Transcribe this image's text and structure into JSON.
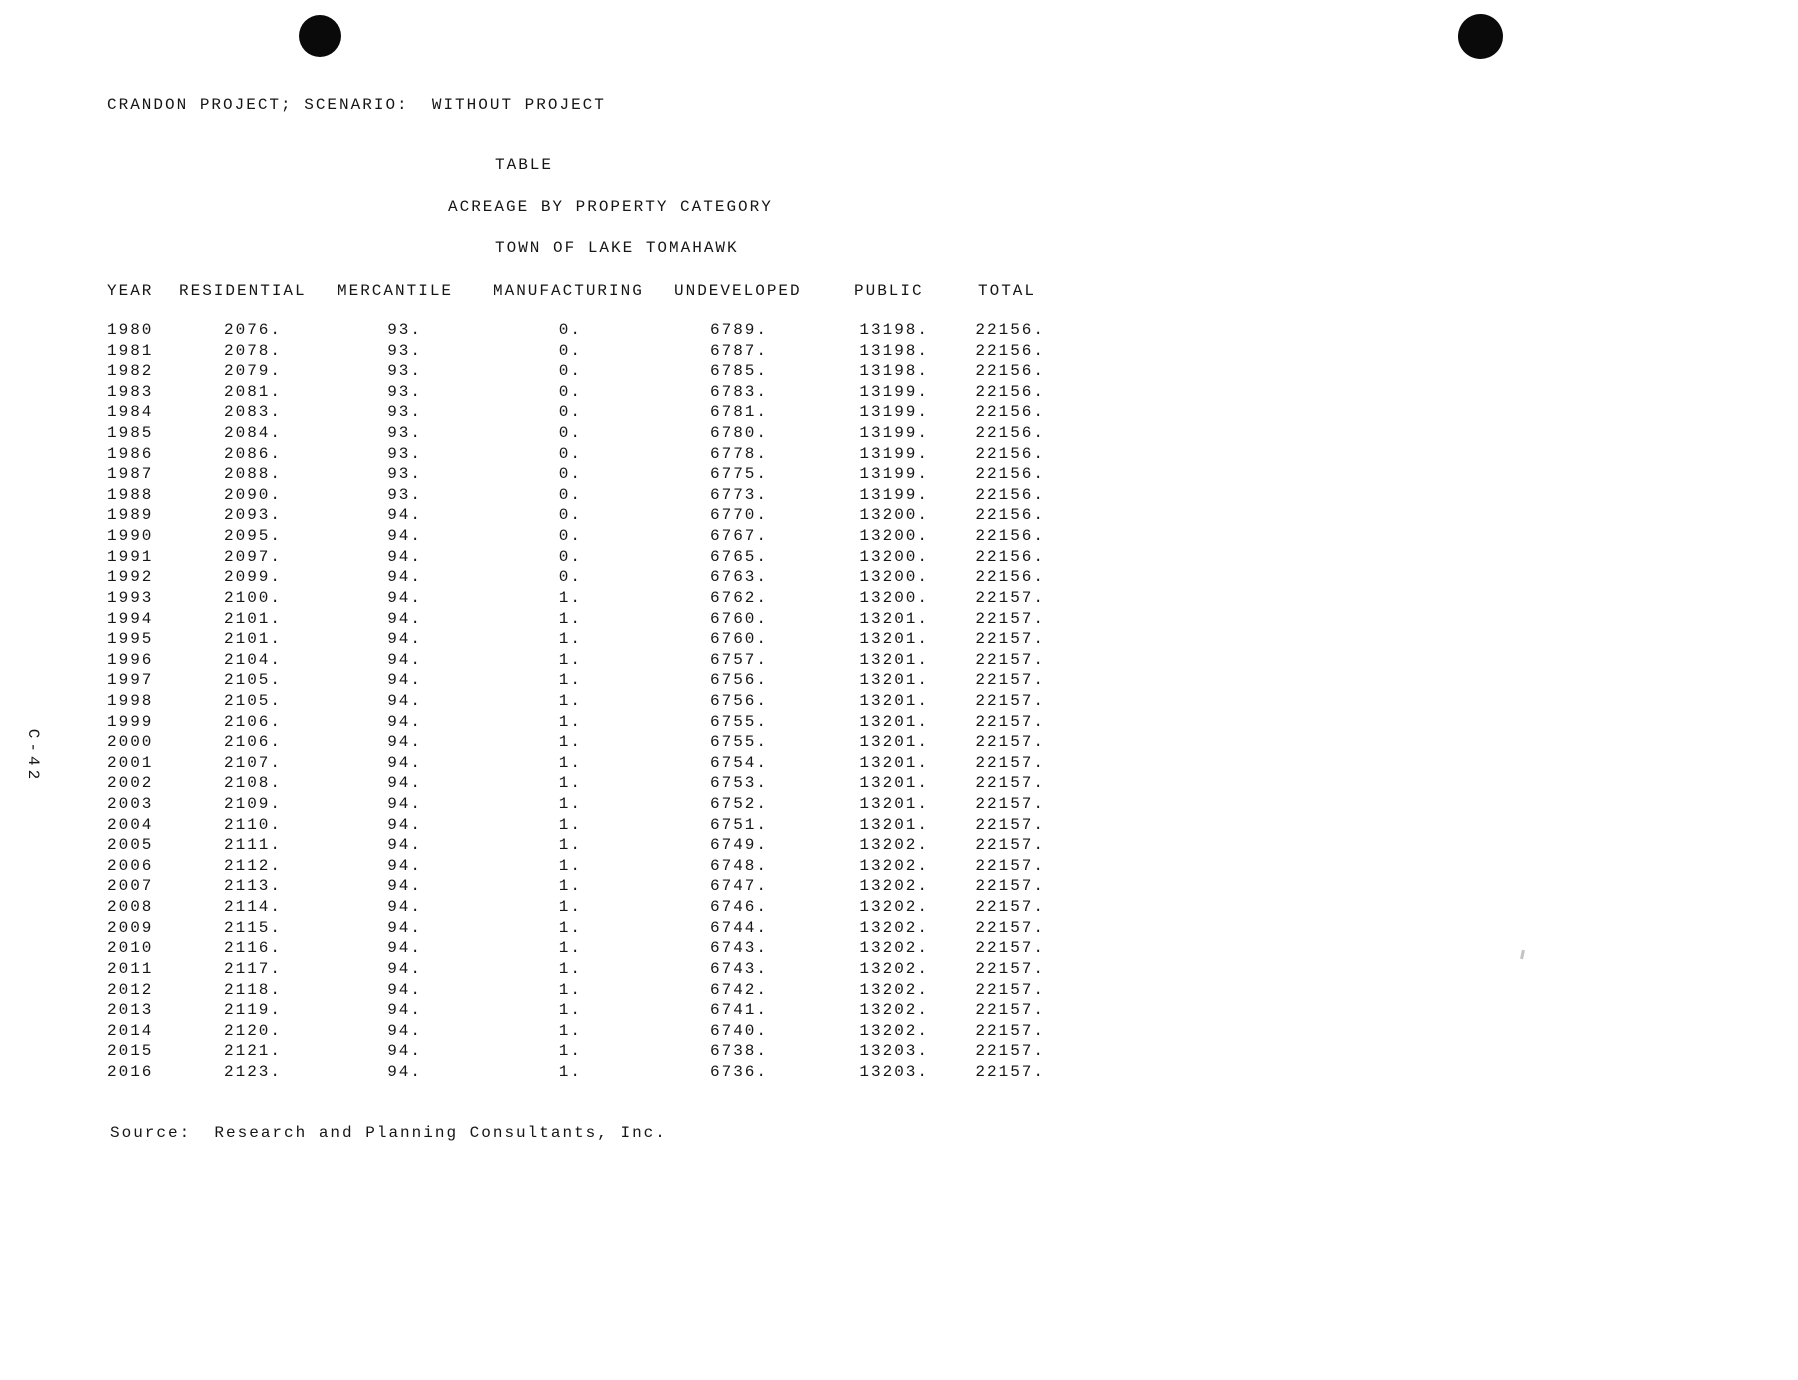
{
  "page": {
    "scenario_line": "CRANDON PROJECT; SCENARIO:  WITHOUT PROJECT",
    "table_label": "TABLE",
    "title": "ACREAGE BY PROPERTY CATEGORY",
    "town": "TOWN OF LAKE TOMAHAWK",
    "side_label": "C-42",
    "source": "Source:  Research and Planning Consultants, Inc.",
    "text_color": "#161616",
    "background": "#ffffff"
  },
  "table": {
    "columns": [
      "YEAR",
      "RESIDENTIAL",
      "MERCANTILE",
      "MANUFACTURING",
      "UNDEVELOPED",
      "PUBLIC",
      "TOTAL"
    ],
    "rows": [
      [
        "1980",
        "2076.",
        "93.",
        "0.",
        "6789.",
        "13198.",
        "22156."
      ],
      [
        "1981",
        "2078.",
        "93.",
        "0.",
        "6787.",
        "13198.",
        "22156."
      ],
      [
        "1982",
        "2079.",
        "93.",
        "0.",
        "6785.",
        "13198.",
        "22156."
      ],
      [
        "1983",
        "2081.",
        "93.",
        "0.",
        "6783.",
        "13199.",
        "22156."
      ],
      [
        "1984",
        "2083.",
        "93.",
        "0.",
        "6781.",
        "13199.",
        "22156."
      ],
      [
        "1985",
        "2084.",
        "93.",
        "0.",
        "6780.",
        "13199.",
        "22156."
      ],
      [
        "1986",
        "2086.",
        "93.",
        "0.",
        "6778.",
        "13199.",
        "22156."
      ],
      [
        "1987",
        "2088.",
        "93.",
        "0.",
        "6775.",
        "13199.",
        "22156."
      ],
      [
        "1988",
        "2090.",
        "93.",
        "0.",
        "6773.",
        "13199.",
        "22156."
      ],
      [
        "1989",
        "2093.",
        "94.",
        "0.",
        "6770.",
        "13200.",
        "22156."
      ],
      [
        "1990",
        "2095.",
        "94.",
        "0.",
        "6767.",
        "13200.",
        "22156."
      ],
      [
        "1991",
        "2097.",
        "94.",
        "0.",
        "6765.",
        "13200.",
        "22156."
      ],
      [
        "1992",
        "2099.",
        "94.",
        "0.",
        "6763.",
        "13200.",
        "22156."
      ],
      [
        "1993",
        "2100.",
        "94.",
        "1.",
        "6762.",
        "13200.",
        "22157."
      ],
      [
        "1994",
        "2101.",
        "94.",
        "1.",
        "6760.",
        "13201.",
        "22157."
      ],
      [
        "1995",
        "2101.",
        "94.",
        "1.",
        "6760.",
        "13201.",
        "22157."
      ],
      [
        "1996",
        "2104.",
        "94.",
        "1.",
        "6757.",
        "13201.",
        "22157."
      ],
      [
        "1997",
        "2105.",
        "94.",
        "1.",
        "6756.",
        "13201.",
        "22157."
      ],
      [
        "1998",
        "2105.",
        "94.",
        "1.",
        "6756.",
        "13201.",
        "22157."
      ],
      [
        "1999",
        "2106.",
        "94.",
        "1.",
        "6755.",
        "13201.",
        "22157."
      ],
      [
        "2000",
        "2106.",
        "94.",
        "1.",
        "6755.",
        "13201.",
        "22157."
      ],
      [
        "2001",
        "2107.",
        "94.",
        "1.",
        "6754.",
        "13201.",
        "22157."
      ],
      [
        "2002",
        "2108.",
        "94.",
        "1.",
        "6753.",
        "13201.",
        "22157."
      ],
      [
        "2003",
        "2109.",
        "94.",
        "1.",
        "6752.",
        "13201.",
        "22157."
      ],
      [
        "2004",
        "2110.",
        "94.",
        "1.",
        "6751.",
        "13201.",
        "22157."
      ],
      [
        "2005",
        "2111.",
        "94.",
        "1.",
        "6749.",
        "13202.",
        "22157."
      ],
      [
        "2006",
        "2112.",
        "94.",
        "1.",
        "6748.",
        "13202.",
        "22157."
      ],
      [
        "2007",
        "2113.",
        "94.",
        "1.",
        "6747.",
        "13202.",
        "22157."
      ],
      [
        "2008",
        "2114.",
        "94.",
        "1.",
        "6746.",
        "13202.",
        "22157."
      ],
      [
        "2009",
        "2115.",
        "94.",
        "1.",
        "6744.",
        "13202.",
        "22157."
      ],
      [
        "2010",
        "2116.",
        "94.",
        "1.",
        "6743.",
        "13202.",
        "22157."
      ],
      [
        "2011",
        "2117.",
        "94.",
        "1.",
        "6743.",
        "13202.",
        "22157."
      ],
      [
        "2012",
        "2118.",
        "94.",
        "1.",
        "6742.",
        "13202.",
        "22157."
      ],
      [
        "2013",
        "2119.",
        "94.",
        "1.",
        "6741.",
        "13202.",
        "22157."
      ],
      [
        "2014",
        "2120.",
        "94.",
        "1.",
        "6740.",
        "13202.",
        "22157."
      ],
      [
        "2015",
        "2121.",
        "94.",
        "1.",
        "6738.",
        "13203.",
        "22157."
      ],
      [
        "2016",
        "2123.",
        "94.",
        "1.",
        "6736.",
        "13203.",
        "22157."
      ]
    ]
  }
}
